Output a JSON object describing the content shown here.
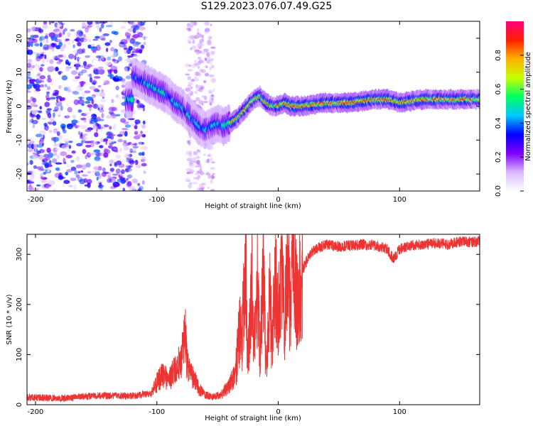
{
  "title": "S129.2023.076.07.49.G25",
  "chart_data": [
    {
      "type": "heatmap",
      "title": "S129.2023.076.07.49.G25",
      "xlabel": "Height of straight line (km)",
      "ylabel": "Frequency (Hz)",
      "xlim": [
        -207,
        166
      ],
      "ylim": [
        -25,
        25
      ],
      "xticks": [
        -200,
        -100,
        0,
        100
      ],
      "yticks": [
        -20,
        -10,
        0,
        10,
        20
      ],
      "xtick_labels": [
        "-200",
        "-100",
        "0",
        "100"
      ],
      "ytick_labels": [
        "-20",
        "-10",
        "0",
        "10",
        "20"
      ],
      "colorbar": {
        "label": "Normalized spectral amplitude",
        "range": [
          0,
          1
        ],
        "ticks": [
          0.0,
          0.2,
          0.4,
          0.6,
          0.8
        ],
        "tick_labels": [
          "0.0",
          "0.2",
          "0.4",
          "0.6",
          "0.8"
        ],
        "colors": [
          "#ffffff",
          "#d9b8ff",
          "#8000ff",
          "#0000ff",
          "#00c8ff",
          "#00ff60",
          "#c8ff00",
          "#ffb000",
          "#ff2000",
          "#ff0080"
        ]
      },
      "ridge": {
        "name": "dominant frequency trace",
        "x": [
          -120,
          -110,
          -100,
          -95,
          -90,
          -85,
          -80,
          -75,
          -70,
          -65,
          -60,
          -55,
          -50,
          -45,
          -40,
          -35,
          -30,
          -25,
          -20,
          -15,
          -10,
          -5,
          0,
          5,
          10,
          20,
          40,
          60,
          80,
          90,
          100,
          120,
          140,
          166
        ],
        "y": [
          9,
          7,
          5,
          4,
          3,
          1,
          0,
          -2,
          -4,
          -6,
          -7,
          -6,
          -5,
          -6,
          -5,
          -4,
          -2,
          0,
          2,
          3,
          1,
          0,
          0,
          1,
          0,
          0,
          1,
          1,
          2,
          2,
          1,
          2,
          2,
          2
        ],
        "peak_amplitude": 0.95
      },
      "noise_region": {
        "x_range": [
          -207,
          -110
        ],
        "y_range": [
          -25,
          25
        ],
        "amplitude": 0.25
      }
    },
    {
      "type": "line",
      "xlabel": "Height of straight line (km)",
      "ylabel": "SNR (10 * v/v)",
      "xlim": [
        -207,
        166
      ],
      "ylim": [
        0,
        340
      ],
      "xticks": [
        -200,
        -100,
        0,
        100
      ],
      "yticks": [
        0,
        100,
        200,
        300
      ],
      "xtick_labels": [
        "-200",
        "-100",
        "0",
        "100"
      ],
      "ytick_labels": [
        "0",
        "100",
        "200",
        "300"
      ],
      "series": [
        {
          "name": "SNR",
          "color": "#ee3333",
          "x": [
            -207,
            -180,
            -150,
            -120,
            -105,
            -100,
            -95,
            -90,
            -85,
            -80,
            -77,
            -75,
            -70,
            -65,
            -60,
            -55,
            -50,
            -45,
            -40,
            -35,
            -32,
            -30,
            -27,
            -25,
            -22,
            -20,
            -17,
            -15,
            -12,
            -10,
            -7,
            -5,
            -2,
            0,
            3,
            5,
            8,
            10,
            13,
            15,
            18,
            20,
            25,
            30,
            40,
            50,
            60,
            70,
            80,
            90,
            95,
            100,
            110,
            120,
            130,
            140,
            150,
            166
          ],
          "y": [
            12,
            10,
            15,
            15,
            20,
            45,
            60,
            50,
            70,
            90,
            155,
            80,
            55,
            30,
            20,
            15,
            18,
            25,
            40,
            70,
            160,
            130,
            300,
            90,
            280,
            120,
            250,
            100,
            290,
            75,
            220,
            130,
            260,
            180,
            290,
            150,
            300,
            200,
            320,
            230,
            240,
            270,
            295,
            310,
            320,
            315,
            318,
            320,
            318,
            310,
            290,
            310,
            318,
            320,
            322,
            320,
            325,
            325
          ]
        }
      ]
    }
  ]
}
